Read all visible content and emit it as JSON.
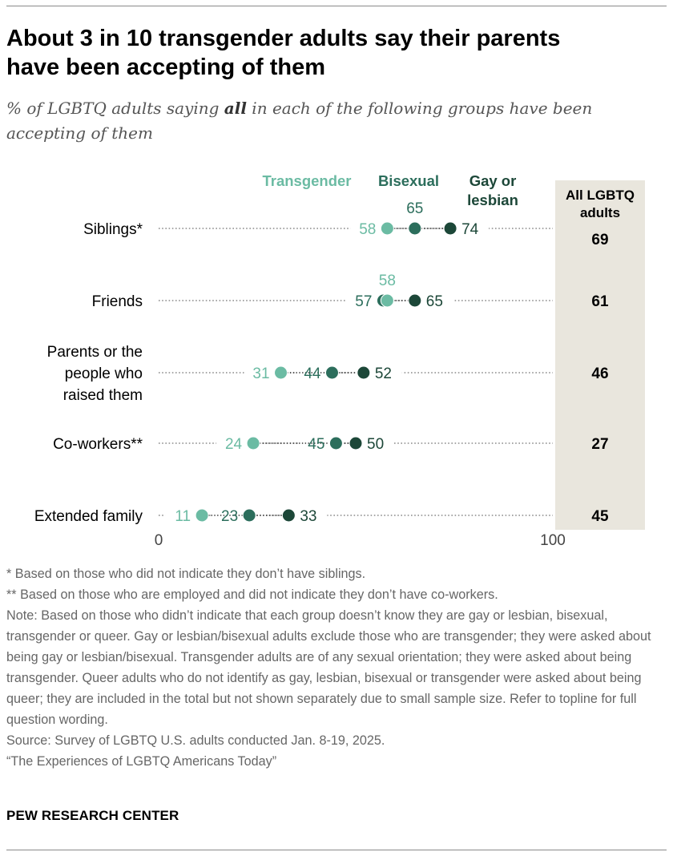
{
  "title_line1": "About 3 in 10 transgender adults say their parents",
  "title_line2": "have been accepting of them",
  "subtitle_pre": "% of LGBTQ adults saying ",
  "subtitle_emph": "all",
  "subtitle_post": " in each of the following groups have been accepting of them",
  "notes": [
    "* Based on those who did not indicate they don’t have siblings.",
    "** Based on those who are employed and did not indicate they don’t have co-workers.",
    "Note: Based on those who didn’t indicate that each group doesn’t know they are gay or lesbian, bisexual, transgender or queer. Gay or lesbian/bisexual adults exclude those who are transgender; they were asked about being gay or lesbian/bisexual. Transgender adults are of any sexual orientation; they were asked about being transgender. Queer adults who do not identify as gay, lesbian, bisexual or transgender were asked about being queer; they are included in the total but not shown separately due to small sample size. Refer to topline for full question wording.",
    "Source: Survey of LGBTQ U.S. adults conducted Jan. 8-19, 2025.",
    "“The Experiences of LGBTQ Americans Today”"
  ],
  "brand": "PEW RESEARCH CENTER",
  "colors": {
    "transgender": "#6bbba3",
    "bisexual": "#2c6e5c",
    "gay_or_lesbian": "#1c4738",
    "total_panel": "#e9e6dd",
    "dotline": "#8a8a8a"
  },
  "chart_data": {
    "type": "dot",
    "xlim": [
      0,
      100
    ],
    "x_ticks": [
      "0",
      "100"
    ],
    "legend": [
      {
        "key": "transgender",
        "name_lines": [
          "Transgender"
        ]
      },
      {
        "key": "bisexual",
        "name_lines": [
          "Bisexual"
        ]
      },
      {
        "key": "gay_or_lesbian",
        "name_lines": [
          "Gay or",
          "lesbian"
        ]
      }
    ],
    "total_label_lines": [
      "All LGBTQ",
      "adults"
    ],
    "categories": [
      {
        "label_lines": [
          "Siblings*"
        ],
        "transgender": 58,
        "bisexual": 65,
        "gay_or_lesbian": 74,
        "total": 69
      },
      {
        "label_lines": [
          "Friends"
        ],
        "transgender": 58,
        "bisexual": 57,
        "gay_or_lesbian": 65,
        "total": 61
      },
      {
        "label_lines": [
          "Parents or the",
          "people who",
          "raised them"
        ],
        "transgender": 31,
        "bisexual": 44,
        "gay_or_lesbian": 52,
        "total": 46
      },
      {
        "label_lines": [
          "Co-workers**"
        ],
        "transgender": 24,
        "bisexual": 45,
        "gay_or_lesbian": 50,
        "total": 27
      },
      {
        "label_lines": [
          "Extended family"
        ],
        "transgender": 11,
        "bisexual": 23,
        "gay_or_lesbian": 33,
        "total": 45
      }
    ]
  }
}
